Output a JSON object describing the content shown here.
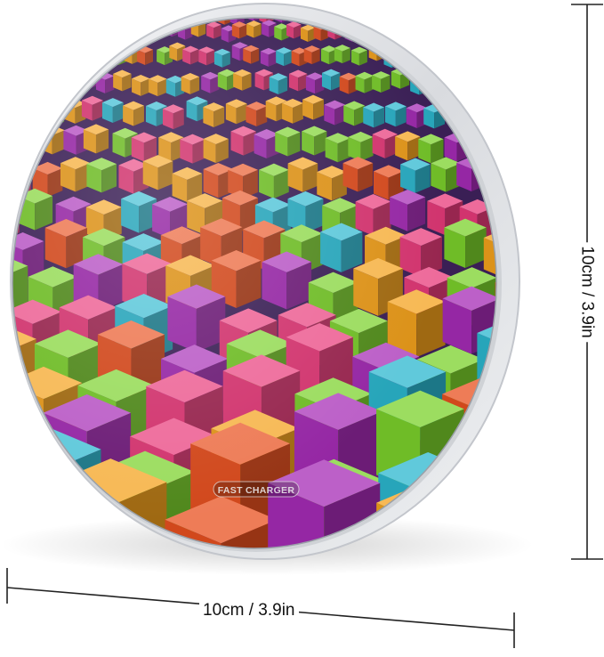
{
  "product": {
    "badge_text": "FAST CHARGER"
  },
  "dimensions": {
    "width_label": "10cm / 3.9in",
    "height_label": "10cm / 3.9in"
  },
  "colors": {
    "frame": "#e6e7ea",
    "frame_edge": "#b9bcc2",
    "line": "#222222",
    "cube_palette": [
      "#7bd12b",
      "#2bb7cf",
      "#a62bb6",
      "#e8501f",
      "#f4a21c",
      "#e83a7a"
    ]
  }
}
